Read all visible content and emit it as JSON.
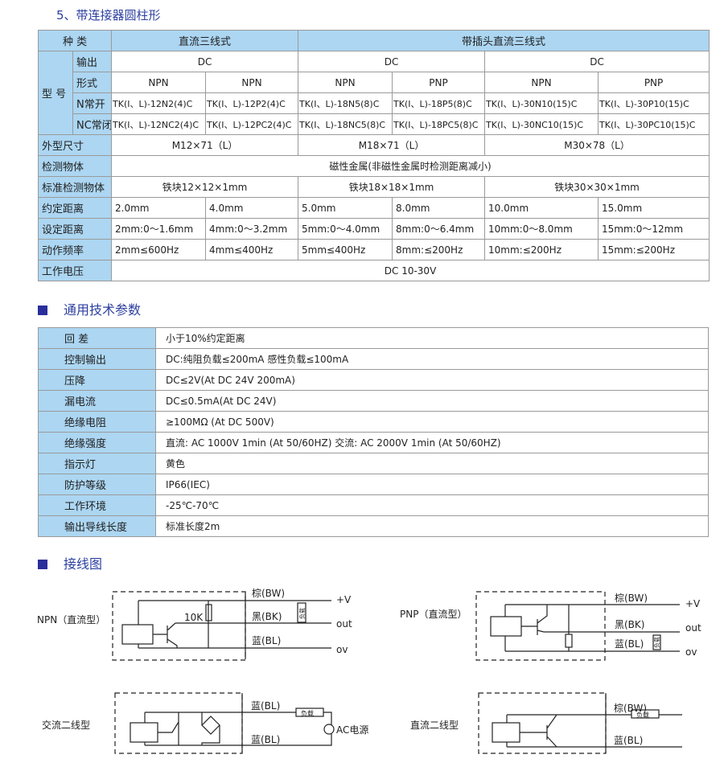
{
  "title": "5、带连接器圆柱形",
  "spec": {
    "kind_label": "种 类",
    "group1": "直流三线式",
    "group2": "带插头直流三线式",
    "model_label": "型 号",
    "output_label": "输出",
    "outputs": [
      "DC",
      "DC",
      "DC"
    ],
    "form_label": "形式",
    "forms": [
      "NPN",
      "NPN",
      "NPN",
      "PNP",
      "NPN",
      "PNP"
    ],
    "no_label": "N常开",
    "no": [
      "TK(I、L)-12N2(4)C",
      "TK(I、L)-12P2(4)C",
      "TK(I、L)-18N5(8)C",
      "TK(I、L)-18P5(8)C",
      "TK(I、L)-30N10(15)C",
      "TK(I、L)-30P10(15)C"
    ],
    "nc_label": "NC常闭",
    "nc": [
      "TK(I、L)-12NC2(4)C",
      "TK(I、L)-12PC2(4)C",
      "TK(I、L)-18NC5(8)C",
      "TK(I、L)-18PC5(8)C",
      "TK(I、L)-30NC10(15)C",
      "TK(I、L)-30PC10(15)C"
    ],
    "size_label": "外型尺寸",
    "sizes": [
      "M12×71（L）",
      "M18×71（L）",
      "M30×78（L）"
    ],
    "target_label": "检测物体",
    "target": "磁性金属(非磁性金属时检测距离减小)",
    "std_label": "标准检测物体",
    "std": [
      "铁块12×12×1mm",
      "铁块18×18×1mm",
      "铁块30×30×1mm"
    ],
    "rated_label": "约定距离",
    "rated": [
      "2.0mm",
      "4.0mm",
      "5.0mm",
      "8.0mm",
      "10.0mm",
      "15.0mm"
    ],
    "set_label": "设定距离",
    "set": [
      "2mm:0～1.6mm",
      "4mm:0～3.2mm",
      "5mm:0～4.0mm",
      "8mm:0～6.4mm",
      "10mm:0～8.0mm",
      "15mm:0～12mm"
    ],
    "freq_label": "动作频率",
    "freq": [
      "2mm≤600Hz",
      "4mm≤400Hz",
      "5mm≤400Hz",
      "8mm:≤200Hz",
      "10mm:≤200Hz",
      "15mm:≤200Hz"
    ],
    "volt_label": "工作电压",
    "volt": "DC 10-30V"
  },
  "general": {
    "title": "通用技术参数",
    "rows": [
      {
        "k": "回 差",
        "v": "小于10%约定距离"
      },
      {
        "k": "控制输出",
        "v": "DC:纯阻负载≤200mA 感性负载≤100mA"
      },
      {
        "k": "压降",
        "v": "DC≤2V(At DC 24V 200mA)"
      },
      {
        "k": "漏电流",
        "v": "DC≤0.5mA(At DC 24V)"
      },
      {
        "k": "绝缘电阻",
        "v": "≥100MΩ (At DC 500V)"
      },
      {
        "k": "绝缘强度",
        "v": "直流: AC 1000V 1min (At 50/60HZ)  交流: AC 2000V 1min (At 50/60HZ)"
      },
      {
        "k": "指示灯",
        "v": "黄色"
      },
      {
        "k": "防护等级",
        "v": "IP66(IEC)"
      },
      {
        "k": "工作环境",
        "v": "-25℃-70℃"
      },
      {
        "k": "输出导线长度",
        "v": "标准长度2m"
      }
    ]
  },
  "wiring": {
    "title": "接线图",
    "npn": {
      "label": "NPN（直流型）",
      "bw": "棕(BW)",
      "bk": "黑(BK)",
      "bl": "蓝(BL)",
      "v": "+V",
      "out": "out",
      "ov": "ov",
      "r": "10K",
      "load": "负载"
    },
    "pnp": {
      "label": "PNP（直流型）",
      "bw": "棕(BW)",
      "bk": "黑(BK)",
      "bl": "蓝(BL)",
      "v": "+V",
      "out": "out",
      "ov": "ov",
      "load": "负载"
    },
    "ac2": {
      "label": "交流二线型",
      "bl1": "蓝(BL)",
      "bl2": "蓝(BL)",
      "load": "负载",
      "src": "AC电源"
    },
    "dc2": {
      "label": "直流二线型",
      "bw": "棕(BW)",
      "bl": "蓝(BL)",
      "load": "负载"
    }
  },
  "colors": {
    "header_bg": "#acd6f2",
    "heading": "#2c3fa0"
  }
}
